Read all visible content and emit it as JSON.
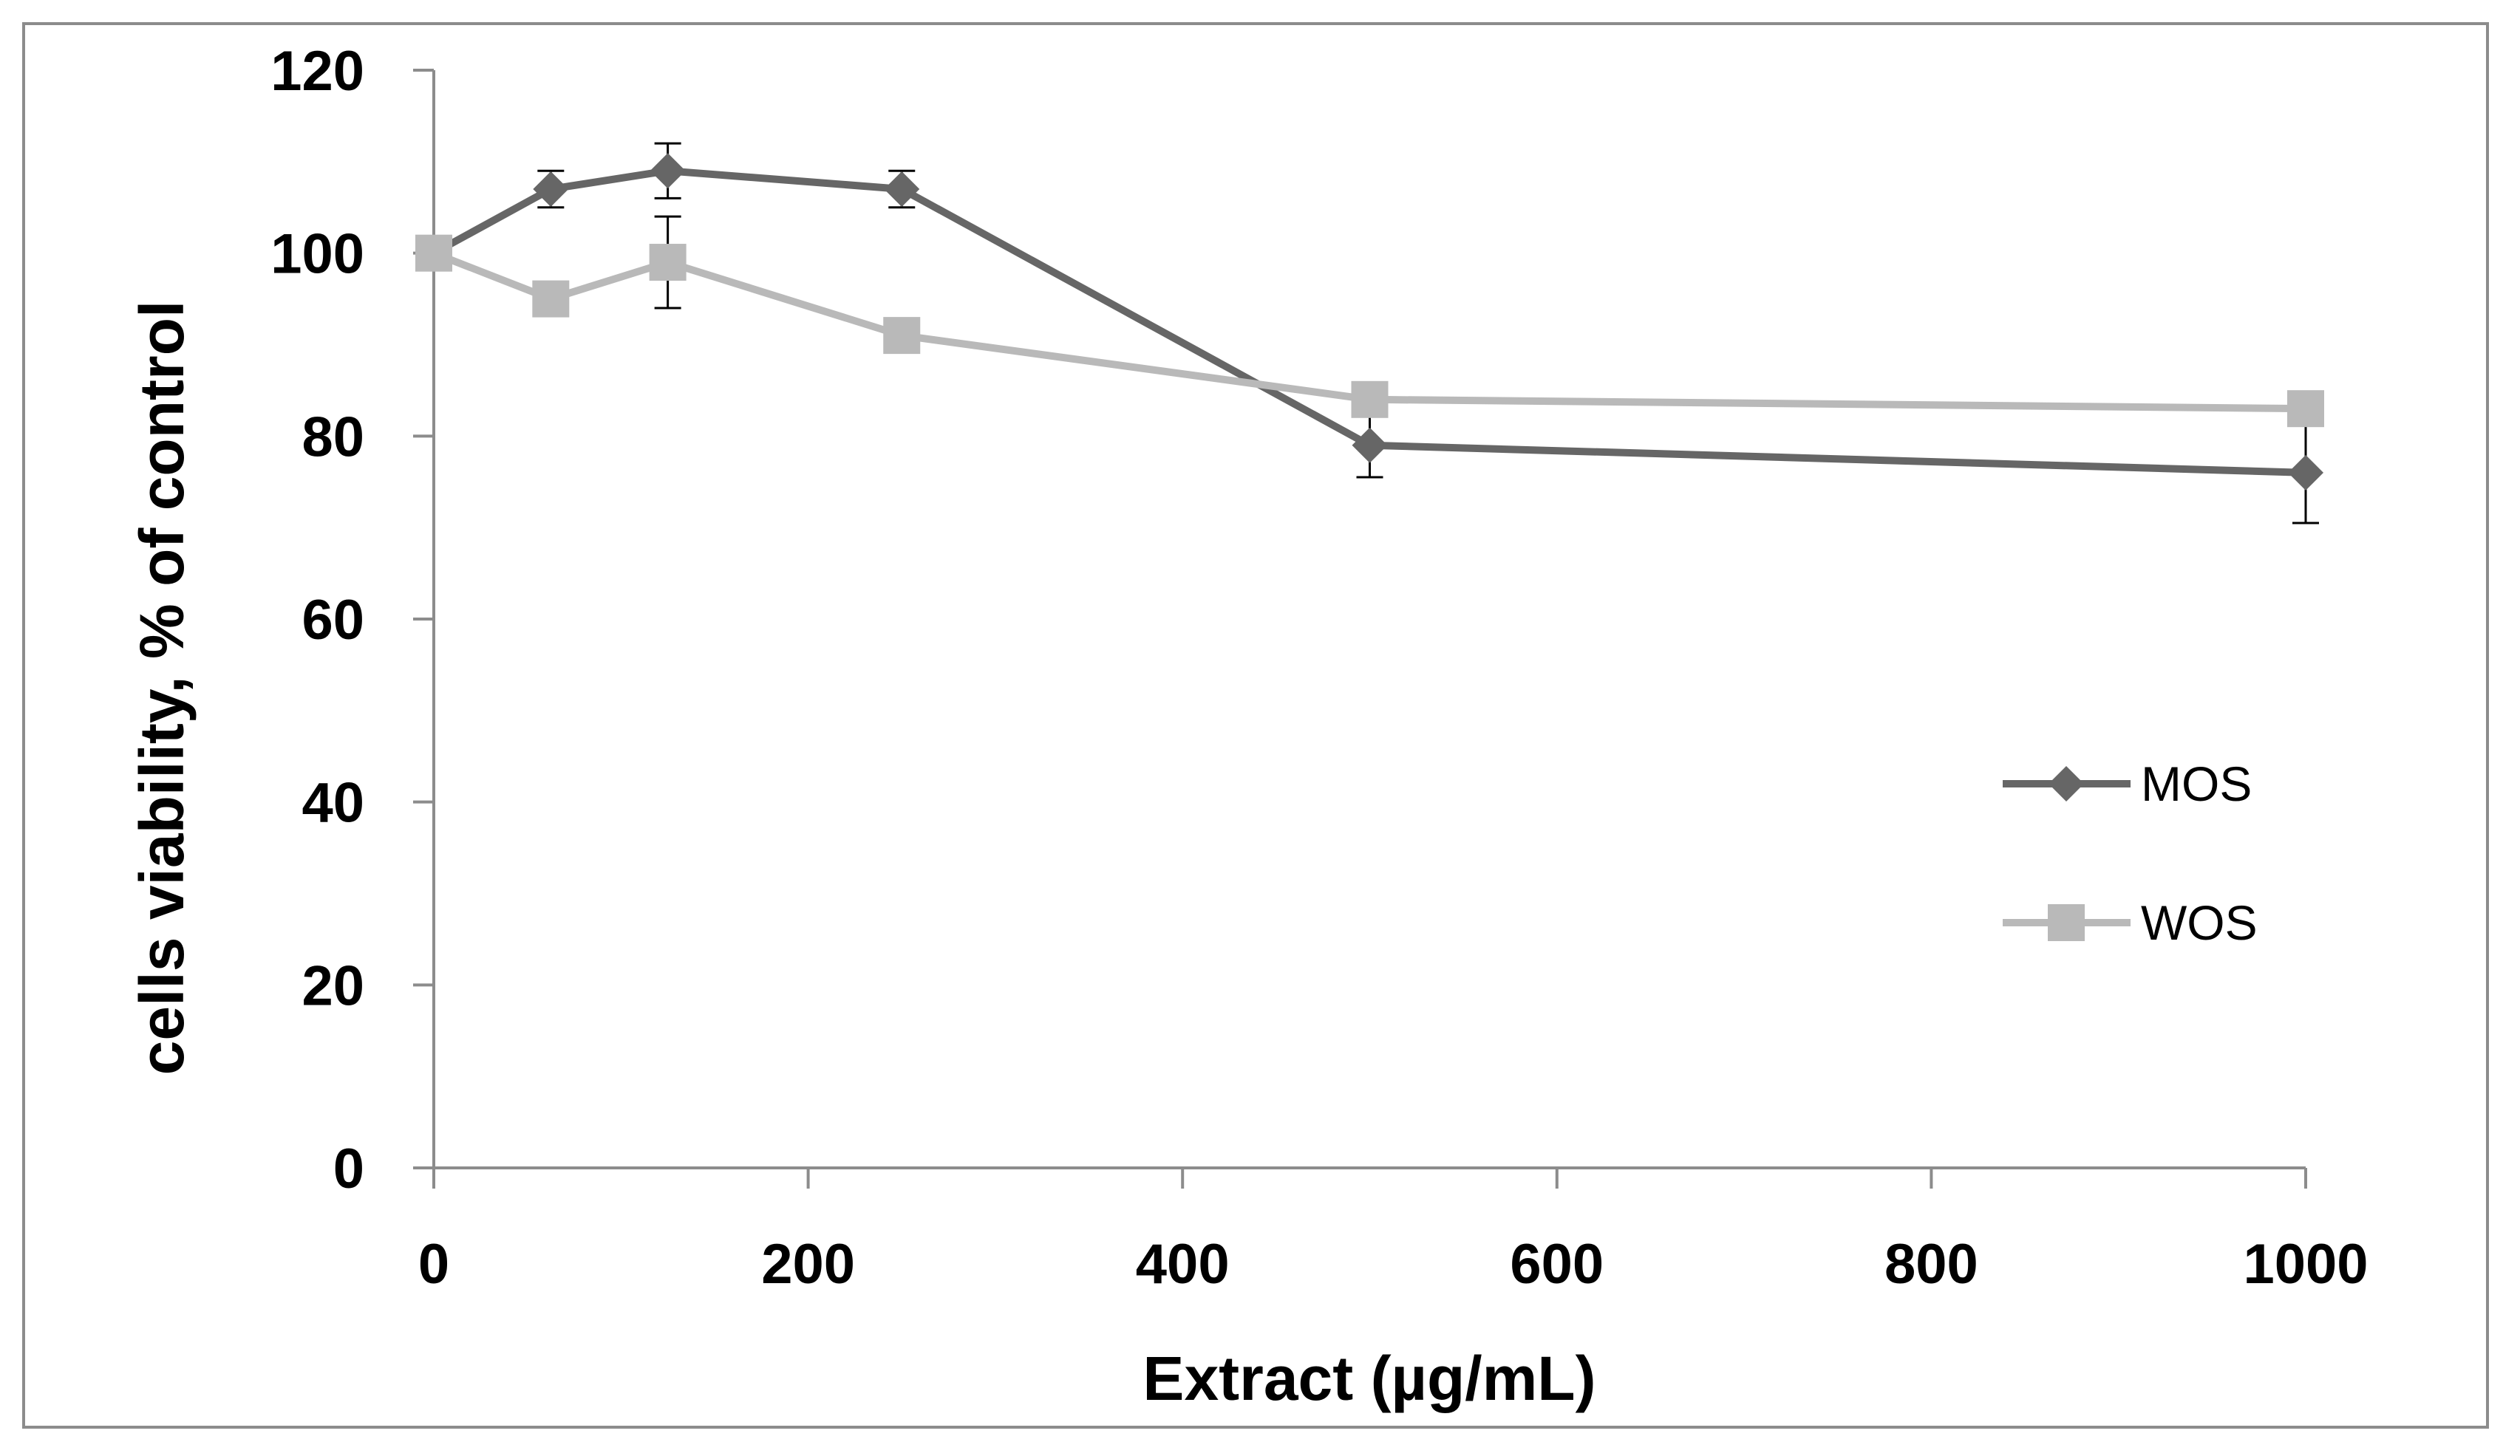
{
  "chart_data": {
    "type": "line",
    "title": "",
    "xlabel": "Extract (µg/mL)",
    "ylabel": "cells viability,  % of control",
    "xlim": [
      0,
      1000
    ],
    "ylim": [
      0,
      120
    ],
    "xticks": [
      0,
      200,
      400,
      600,
      800,
      1000
    ],
    "yticks": [
      0,
      20,
      40,
      60,
      80,
      100,
      120
    ],
    "grid": false,
    "legend_position": "right",
    "series": [
      {
        "name": "MOS",
        "marker": "diamond",
        "color": "#666666",
        "x": [
          0,
          62.5,
          125,
          250,
          500,
          1000
        ],
        "y": [
          100,
          107,
          109,
          107,
          79,
          76
        ],
        "error": [
          0,
          2,
          3,
          2,
          3.5,
          5.5
        ]
      },
      {
        "name": "WOS",
        "marker": "square",
        "color": "#b9b9b9",
        "x": [
          0,
          62.5,
          125,
          250,
          500,
          1000
        ],
        "y": [
          100,
          95,
          99,
          91,
          84,
          83
        ],
        "error": [
          0,
          0,
          5,
          0,
          0,
          0
        ]
      }
    ]
  }
}
